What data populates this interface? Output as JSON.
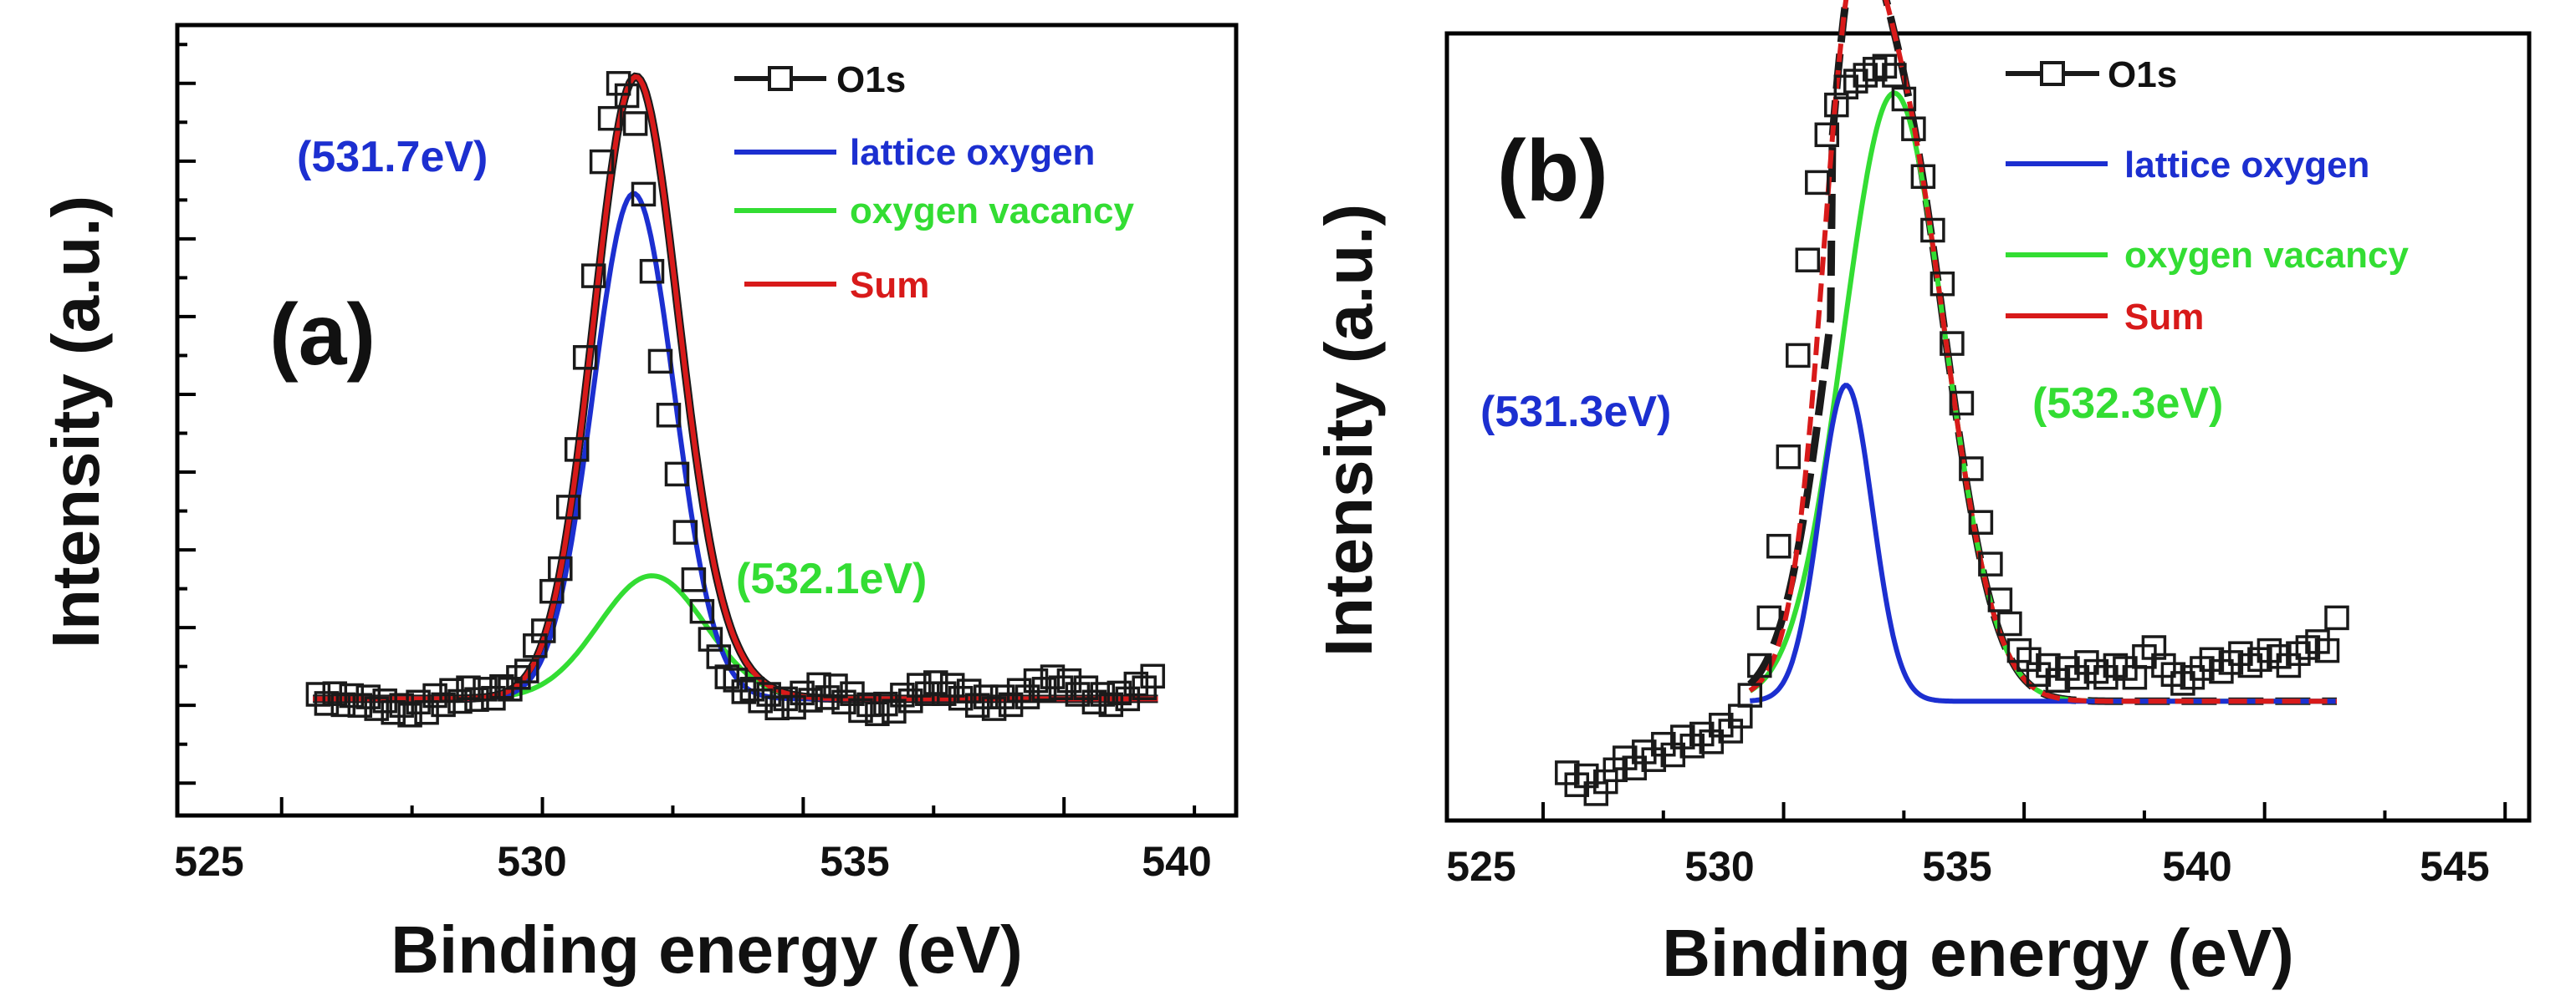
{
  "chart_data": [
    {
      "id": "a",
      "type": "line",
      "panel_label": "(a)",
      "title": "",
      "xlabel": "Binding energy (eV)",
      "ylabel": "Intensity (a.u.)",
      "xlim": [
        523.0,
        543.3
      ],
      "ylim": [
        -0.09,
        1.13
      ],
      "xticks": [
        525,
        530,
        535,
        540
      ],
      "y_tick_labels": "none",
      "colors": {
        "O1s": "#1a1a1a",
        "lattice": "#1c2fd0",
        "vacancy": "#33dd33",
        "sum": "#d81a1a"
      },
      "baseline": 0.09,
      "components": [
        {
          "name": "lattice oxygen",
          "center": 531.75,
          "height": 0.78,
          "sigma": 0.78
        },
        {
          "name": "oxygen vacancy",
          "center": 532.1,
          "height": 0.19,
          "sigma": 1.02
        }
      ],
      "series": [
        {
          "name": "O1s",
          "style": "markers",
          "x": [
            525.7,
            525.86,
            526.02,
            526.18,
            526.34,
            526.5,
            526.66,
            526.82,
            526.98,
            527.14,
            527.3,
            527.46,
            527.62,
            527.78,
            527.94,
            528.1,
            528.26,
            528.42,
            528.58,
            528.74,
            528.9,
            529.06,
            529.22,
            529.38,
            529.54,
            529.7,
            529.86,
            530.02,
            530.18,
            530.34,
            530.5,
            530.66,
            530.82,
            530.98,
            531.14,
            531.3,
            531.46,
            531.62,
            531.78,
            531.94,
            532.1,
            532.26,
            532.42,
            532.58,
            532.74,
            532.9,
            533.06,
            533.22,
            533.38,
            533.54,
            533.7,
            533.86,
            534.02,
            534.18,
            534.34,
            534.5,
            534.66,
            534.82,
            534.98,
            535.14,
            535.3,
            535.46,
            535.62,
            535.78,
            535.94,
            536.1,
            536.26,
            536.42,
            536.58,
            536.74,
            536.9,
            537.06,
            537.22,
            537.38,
            537.54,
            537.7,
            537.86,
            538.02,
            538.18,
            538.34,
            538.5,
            538.66,
            538.82,
            538.98,
            539.14,
            539.3,
            539.46,
            539.62,
            539.78,
            539.94,
            540.1,
            540.26,
            540.42,
            540.58,
            540.74,
            540.9,
            541.06,
            541.22,
            541.38,
            541.54,
            541.7
          ],
          "y": [
            0.097,
            0.083,
            0.098,
            0.081,
            0.095,
            0.08,
            0.093,
            0.075,
            0.087,
            0.069,
            0.08,
            0.065,
            0.085,
            0.069,
            0.095,
            0.081,
            0.103,
            0.086,
            0.107,
            0.089,
            0.105,
            0.091,
            0.109,
            0.105,
            0.123,
            0.133,
            0.172,
            0.195,
            0.256,
            0.291,
            0.386,
            0.475,
            0.617,
            0.743,
            0.919,
            0.986,
            1.04,
            1.021,
            0.978,
            0.869,
            0.75,
            0.611,
            0.528,
            0.437,
            0.347,
            0.274,
            0.225,
            0.182,
            0.155,
            0.124,
            0.119,
            0.101,
            0.105,
            0.087,
            0.097,
            0.076,
            0.09,
            0.077,
            0.099,
            0.088,
            0.112,
            0.092,
            0.11,
            0.085,
            0.098,
            0.072,
            0.081,
            0.067,
            0.082,
            0.071,
            0.096,
            0.087,
            0.111,
            0.098,
            0.115,
            0.098,
            0.111,
            0.091,
            0.102,
            0.08,
            0.093,
            0.075,
            0.093,
            0.081,
            0.103,
            0.093,
            0.118,
            0.105,
            0.124,
            0.107,
            0.118,
            0.097,
            0.107,
            0.085,
            0.097,
            0.081,
            0.099,
            0.09,
            0.113,
            0.107,
            0.125
          ]
        },
        {
          "name": "lattice oxygen",
          "style": "line"
        },
        {
          "name": "oxygen vacancy",
          "style": "line"
        },
        {
          "name": "Sum",
          "style": "line"
        }
      ],
      "legend": {
        "position": "top-right",
        "entries": [
          {
            "label": "O1s",
            "color": "#1a1a1a",
            "marker": "square-line"
          },
          {
            "label": "lattice oxygen",
            "color": "#1c2fd0",
            "marker": "line"
          },
          {
            "label": "oxygen vacancy",
            "color": "#33dd33",
            "marker": "line"
          },
          {
            "label": "Sum",
            "color": "#d81a1a",
            "marker": "line"
          }
        ]
      },
      "annotations": [
        {
          "text": "(531.7eV)",
          "color": "#1c2fd0"
        },
        {
          "text": "(532.1eV)",
          "color": "#33dd33"
        }
      ]
    },
    {
      "id": "b",
      "type": "line",
      "panel_label": "(b)",
      "title": "",
      "xlabel": "Binding energy (eV)",
      "ylabel": "Intensity (a.u.)",
      "xlim": [
        523.0,
        545.5
      ],
      "ylim": [
        -0.2,
        1.12
      ],
      "xticks": [
        525,
        530,
        535,
        540,
        545
      ],
      "y_tick_labels": "none",
      "colors": {
        "O1s": "#1a1a1a",
        "lattice": "#1c2fd0",
        "vacancy": "#33dd33",
        "sum": "#d81a1a"
      },
      "baseline": 0.0,
      "components": [
        {
          "name": "lattice oxygen",
          "center": 531.3,
          "height": 0.53,
          "sigma": 0.55
        },
        {
          "name": "oxygen vacancy",
          "center": 532.3,
          "height": 1.02,
          "sigma": 1.05
        }
      ],
      "series": [
        {
          "name": "O1s",
          "style": "markers",
          "x": [
            525.5,
            525.7,
            525.9,
            526.1,
            526.3,
            526.5,
            526.7,
            526.9,
            527.1,
            527.3,
            527.5,
            527.7,
            527.9,
            528.1,
            528.3,
            528.5,
            528.7,
            528.9,
            529.1,
            529.3,
            529.5,
            529.7,
            529.9,
            530.1,
            530.3,
            530.5,
            530.7,
            530.9,
            531.1,
            531.3,
            531.5,
            531.7,
            531.9,
            532.1,
            532.3,
            532.5,
            532.7,
            532.9,
            533.1,
            533.3,
            533.5,
            533.7,
            533.9,
            534.1,
            534.3,
            534.5,
            534.7,
            534.9,
            535.1,
            535.3,
            535.5,
            535.7,
            535.9,
            536.1,
            536.3,
            536.5,
            536.7,
            536.9,
            537.1,
            537.3,
            537.5,
            537.7,
            537.9,
            538.1,
            538.3,
            538.5,
            538.7,
            538.9,
            539.1,
            539.3,
            539.5,
            539.7,
            539.9,
            540.1,
            540.3,
            540.5,
            540.7,
            540.9,
            541.1,
            541.3,
            541.5
          ],
          "y": [
            -0.12,
            -0.14,
            -0.125,
            -0.155,
            -0.135,
            -0.115,
            -0.095,
            -0.112,
            -0.085,
            -0.098,
            -0.072,
            -0.09,
            -0.06,
            -0.075,
            -0.055,
            -0.068,
            -0.04,
            -0.05,
            -0.025,
            0.01,
            0.06,
            0.14,
            0.26,
            0.41,
            0.58,
            0.74,
            0.87,
            0.95,
            1.0,
            1.03,
            1.04,
            1.05,
            1.06,
            1.065,
            1.05,
            1.01,
            0.96,
            0.88,
            0.79,
            0.7,
            0.6,
            0.5,
            0.39,
            0.3,
            0.23,
            0.17,
            0.13,
            0.085,
            0.07,
            0.045,
            0.06,
            0.035,
            0.055,
            0.04,
            0.065,
            0.05,
            0.04,
            0.06,
            0.055,
            0.04,
            0.075,
            0.09,
            0.06,
            0.045,
            0.03,
            0.04,
            0.055,
            0.07,
            0.05,
            0.065,
            0.08,
            0.06,
            0.07,
            0.085,
            0.075,
            0.06,
            0.08,
            0.09,
            0.1,
            0.085,
            0.14
          ]
        },
        {
          "name": "lattice oxygen",
          "style": "line"
        },
        {
          "name": "oxygen vacancy",
          "style": "line"
        },
        {
          "name": "Sum",
          "style": "line"
        }
      ],
      "legend": {
        "position": "top-right",
        "entries": [
          {
            "label": "O1s",
            "color": "#1a1a1a",
            "marker": "square-line"
          },
          {
            "label": "lattice oxygen",
            "color": "#1c2fd0",
            "marker": "line"
          },
          {
            "label": "oxygen vacancy",
            "color": "#33dd33",
            "marker": "line"
          },
          {
            "label": "Sum",
            "color": "#d81a1a",
            "marker": "line"
          }
        ]
      },
      "annotations": [
        {
          "text": "(531.3eV)",
          "color": "#1c2fd0"
        },
        {
          "text": "(532.3eV)",
          "color": "#33dd33"
        }
      ]
    }
  ]
}
